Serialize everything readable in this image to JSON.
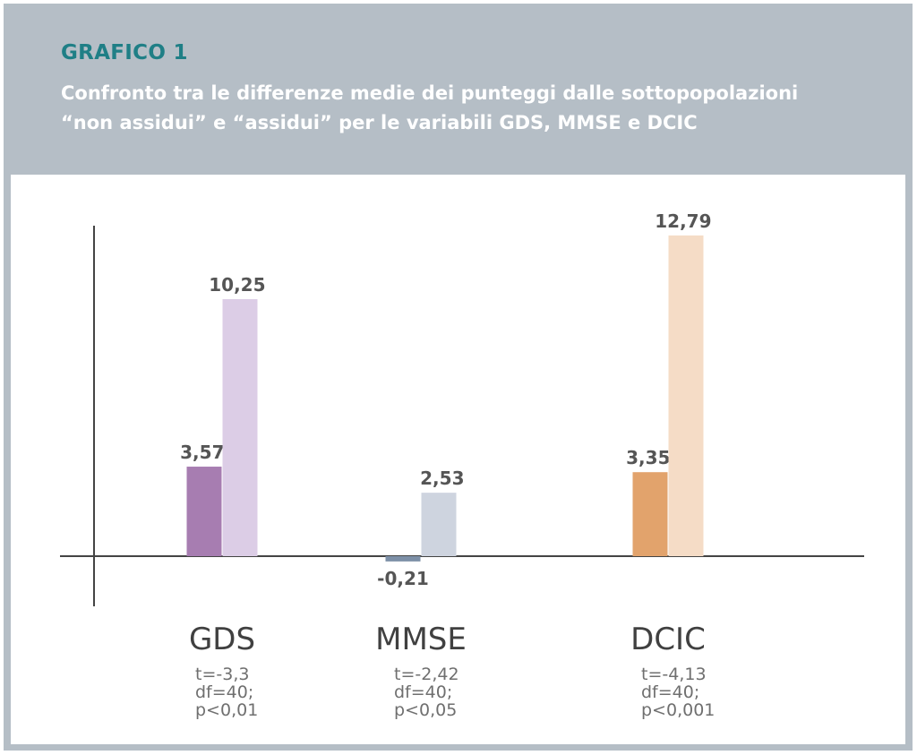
{
  "header": {
    "title": "GRAFICO 1",
    "subtitle": "Confronto tra le differenze medie dei punteggi dalle sottopopolazioni “non assidui” e “assidui” per le variabili GDS, MMSE e DCIC"
  },
  "chart_data": {
    "type": "bar",
    "title": "GRAFICO 1",
    "subtitle": "Confronto tra le differenze medie dei punteggi dalle sottopopolazioni “non assidui” e “assidui” per le variabili GDS, MMSE e DCIC",
    "categories": [
      "GDS",
      "MMSE",
      "DCIC"
    ],
    "series": [
      {
        "name": "non assidui",
        "values": [
          3.57,
          -0.21,
          3.35
        ]
      },
      {
        "name": "assidui",
        "values": [
          10.25,
          2.53,
          12.79
        ]
      }
    ],
    "value_labels": [
      [
        "3,57",
        "-0,21",
        "3,35"
      ],
      [
        "10,25",
        "2,53",
        "12,79"
      ]
    ],
    "colors": [
      [
        "#a77db1",
        "#7d90a7",
        "#e2a36c"
      ],
      [
        "#dccde6",
        "#ced4df",
        "#f5dcc6"
      ]
    ],
    "stats": [
      [
        "t=-3,3",
        "df=40;",
        "p<0,01"
      ],
      [
        "t=-2,42",
        "df=40;",
        "p<0,05"
      ],
      [
        "t=-4,13",
        "df=40;",
        "p<0,001"
      ]
    ],
    "xlabel": "",
    "ylabel": "",
    "ylim": [
      -0.7,
      18
    ],
    "grid": false,
    "legend": "none",
    "axis_color": "#444444"
  }
}
